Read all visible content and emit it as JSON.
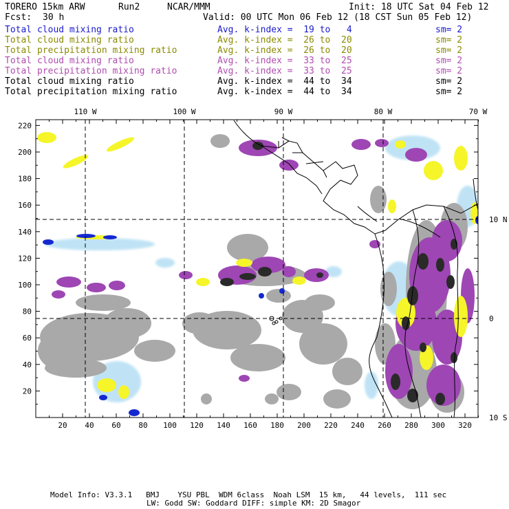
{
  "header": {
    "model": "TORERO",
    "resolution": "15km ARW",
    "run": "Run2",
    "org": "NCAR/MMM",
    "init": "Init: 18 UTC Sat 04 Feb 12",
    "fcst_label": "Fcst:",
    "fcst_value": "30 h",
    "valid": "Valid: 00 UTC Mon 06 Feb 12 (18 CST Sun 05 Feb 12)"
  },
  "legend": [
    {
      "field": "Total cloud mixing ratio",
      "kindex": "Avg. k-index =  19 to   4",
      "sm": "sm= 2",
      "color": "#1a1acc"
    },
    {
      "field": "Total cloud mixing ratio",
      "kindex": "Avg. k-index =  26 to  20",
      "sm": "sm= 2",
      "color": "#8a8a00"
    },
    {
      "field": "Total precipitation mixing ratio",
      "kindex": "Avg. k-index =  26 to  20",
      "sm": "sm= 2",
      "color": "#8a8a00"
    },
    {
      "field": "Total cloud mixing ratio",
      "kindex": "Avg. k-index =  33 to  25",
      "sm": "sm= 2",
      "color": "#b04cb0"
    },
    {
      "field": "Total precipitation mixing ratio",
      "kindex": "Avg. k-index =  33 to  25",
      "sm": "sm= 2",
      "color": "#b04cb0"
    },
    {
      "field": "Total cloud mixing ratio",
      "kindex": "Avg. k-index =  44 to  34",
      "sm": "sm= 2",
      "color": "#000000"
    },
    {
      "field": "Total precipitation mixing ratio",
      "kindex": "Avg. k-index =  44 to  34",
      "sm": "sm= 2",
      "color": "#000000"
    }
  ],
  "map": {
    "top_labels": [
      "110 W",
      "100 W",
      "90 W",
      "80 W",
      "70 W"
    ],
    "right_labels": [
      "10 N",
      "0",
      "10 S"
    ],
    "y_ticks": [
      "20",
      "40",
      "60",
      "80",
      "100",
      "120",
      "140",
      "160",
      "180",
      "200",
      "220"
    ],
    "x_ticks": [
      "20",
      "40",
      "60",
      "80",
      "100",
      "120",
      "140",
      "160",
      "180",
      "200",
      "220",
      "240",
      "260",
      "280",
      "300",
      "320"
    ]
  },
  "colors": {
    "gray": "#a9a9a9",
    "dark": "#2a2a2a",
    "purple": "#9e46b4",
    "yellow": "#f5f52a",
    "blue": "#1428d0",
    "lightblue": "#bfe3f5",
    "coast": "#000000"
  },
  "footer": {
    "line1": "Model Info: V3.3.1   BMJ    YSU PBL  WDM 6class  Noah LSM  15 km,   44 levels,  111 sec",
    "line2": "LW: Godd SW: Goddard DIFF: simple KM: 2D Smagor"
  }
}
